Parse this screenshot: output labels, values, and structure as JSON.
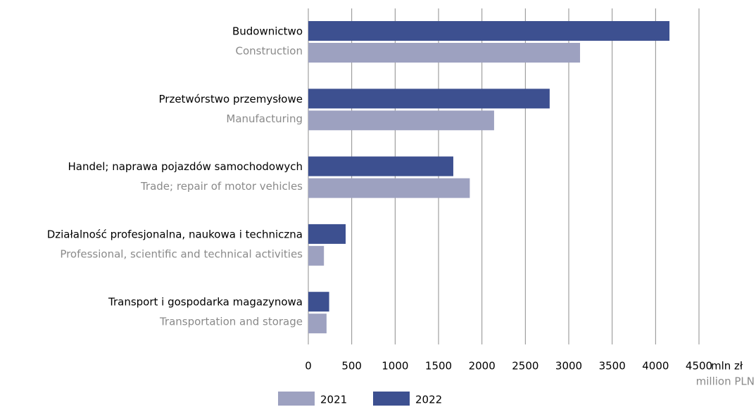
{
  "chart_data": {
    "type": "bar",
    "orientation": "horizontal",
    "categories": [
      "Budownictwo",
      "Przetwórstwo przemysłowe",
      "Handel; naprawa pojazdów samochodowych",
      "Działalność profesjonalna, naukowa i techniczna",
      "Transport i gospodarka magazynowa"
    ],
    "category_translations": [
      "Construction",
      "Manufacturing",
      "Trade; repair of motor vehicles",
      "Professional, scientific and technical activities",
      "Transportation and storage"
    ],
    "series": [
      {
        "name": "2021",
        "color": "#9da1c0",
        "values": [
          3130,
          2140,
          1860,
          180,
          210
        ]
      },
      {
        "name": "2022",
        "color": "#3d5090",
        "values": [
          4160,
          2780,
          1670,
          430,
          240
        ]
      }
    ],
    "x_label": "mln zł",
    "x_label_translation": "million PLN",
    "xlim": [
      0,
      4500
    ],
    "xticks": [
      0,
      500,
      1000,
      1500,
      2000,
      2500,
      3000,
      3500,
      4000,
      4500
    ],
    "grid": true,
    "legend": "bottom"
  }
}
